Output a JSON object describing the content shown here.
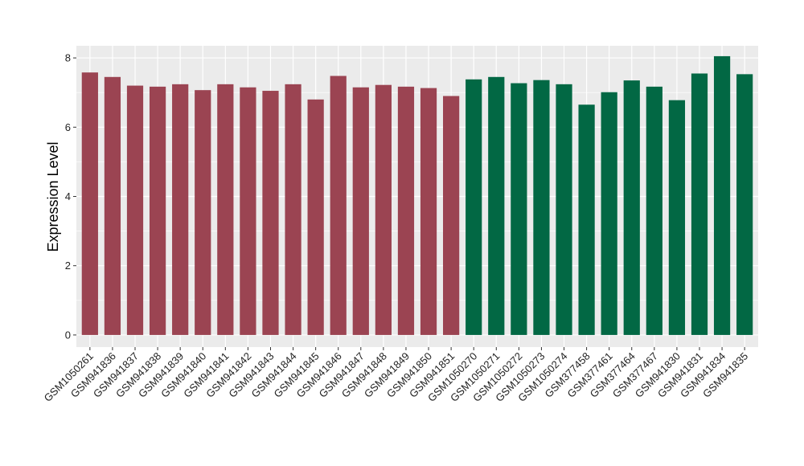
{
  "chart_data": {
    "type": "bar",
    "ylabel": "Expression Level",
    "xlabel": "",
    "ylim": [
      -0.35,
      8.35
    ],
    "yticks": [
      0,
      2,
      4,
      6,
      8
    ],
    "grid": true,
    "panel_background": "#ebebeb",
    "grid_color": "#ffffff",
    "categories": [
      "GSM1050261",
      "GSM941836",
      "GSM941837",
      "GSM941838",
      "GSM941839",
      "GSM941840",
      "GSM941841",
      "GSM941842",
      "GSM941843",
      "GSM941844",
      "GSM941845",
      "GSM941846",
      "GSM941847",
      "GSM941848",
      "GSM941849",
      "GSM941850",
      "GSM941851",
      "GSM1050270",
      "GSM1050271",
      "GSM1050272",
      "GSM1050273",
      "GSM1050274",
      "GSM377458",
      "GSM377461",
      "GSM377464",
      "GSM377467",
      "GSM941830",
      "GSM941831",
      "GSM941834",
      "GSM941835"
    ],
    "values": [
      7.58,
      7.45,
      7.2,
      7.17,
      7.24,
      7.07,
      7.24,
      7.15,
      7.05,
      7.24,
      6.8,
      7.48,
      7.15,
      7.22,
      7.17,
      7.13,
      6.9,
      7.38,
      7.45,
      7.27,
      7.36,
      7.24,
      6.65,
      7.01,
      7.35,
      7.17,
      6.78,
      7.55,
      8.05,
      7.53
    ],
    "group_colors": [
      "#9b4452",
      "#026844"
    ],
    "bar_groups": [
      0,
      0,
      0,
      0,
      0,
      0,
      0,
      0,
      0,
      0,
      0,
      0,
      0,
      0,
      0,
      0,
      0,
      1,
      1,
      1,
      1,
      1,
      1,
      1,
      1,
      1,
      1,
      1,
      1,
      1
    ]
  }
}
